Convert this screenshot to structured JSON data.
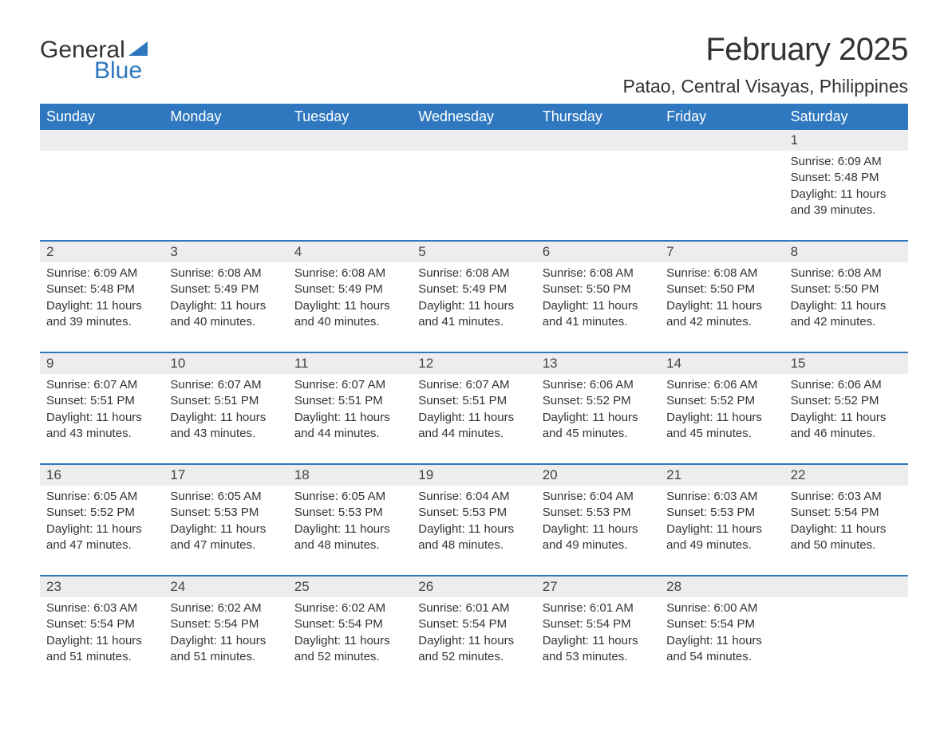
{
  "brand": {
    "word1": "General",
    "word2": "Blue",
    "sail_color": "#2f78bf",
    "text_color": "#333333"
  },
  "title": "February 2025",
  "location": "Patao, Central Visayas, Philippines",
  "colors": {
    "header_bg": "#2f78bf",
    "header_text": "#ffffff",
    "daynum_bg": "#ededed",
    "week_divider": "#2f78bf",
    "body_text": "#333333",
    "page_bg": "#ffffff"
  },
  "day_names": [
    "Sunday",
    "Monday",
    "Tuesday",
    "Wednesday",
    "Thursday",
    "Friday",
    "Saturday"
  ],
  "weeks": [
    [
      {
        "day": "",
        "sunrise": "",
        "sunset": "",
        "daylight": ""
      },
      {
        "day": "",
        "sunrise": "",
        "sunset": "",
        "daylight": ""
      },
      {
        "day": "",
        "sunrise": "",
        "sunset": "",
        "daylight": ""
      },
      {
        "day": "",
        "sunrise": "",
        "sunset": "",
        "daylight": ""
      },
      {
        "day": "",
        "sunrise": "",
        "sunset": "",
        "daylight": ""
      },
      {
        "day": "",
        "sunrise": "",
        "sunset": "",
        "daylight": ""
      },
      {
        "day": "1",
        "sunrise": "Sunrise: 6:09 AM",
        "sunset": "Sunset: 5:48 PM",
        "daylight": "Daylight: 11 hours and 39 minutes."
      }
    ],
    [
      {
        "day": "2",
        "sunrise": "Sunrise: 6:09 AM",
        "sunset": "Sunset: 5:48 PM",
        "daylight": "Daylight: 11 hours and 39 minutes."
      },
      {
        "day": "3",
        "sunrise": "Sunrise: 6:08 AM",
        "sunset": "Sunset: 5:49 PM",
        "daylight": "Daylight: 11 hours and 40 minutes."
      },
      {
        "day": "4",
        "sunrise": "Sunrise: 6:08 AM",
        "sunset": "Sunset: 5:49 PM",
        "daylight": "Daylight: 11 hours and 40 minutes."
      },
      {
        "day": "5",
        "sunrise": "Sunrise: 6:08 AM",
        "sunset": "Sunset: 5:49 PM",
        "daylight": "Daylight: 11 hours and 41 minutes."
      },
      {
        "day": "6",
        "sunrise": "Sunrise: 6:08 AM",
        "sunset": "Sunset: 5:50 PM",
        "daylight": "Daylight: 11 hours and 41 minutes."
      },
      {
        "day": "7",
        "sunrise": "Sunrise: 6:08 AM",
        "sunset": "Sunset: 5:50 PM",
        "daylight": "Daylight: 11 hours and 42 minutes."
      },
      {
        "day": "8",
        "sunrise": "Sunrise: 6:08 AM",
        "sunset": "Sunset: 5:50 PM",
        "daylight": "Daylight: 11 hours and 42 minutes."
      }
    ],
    [
      {
        "day": "9",
        "sunrise": "Sunrise: 6:07 AM",
        "sunset": "Sunset: 5:51 PM",
        "daylight": "Daylight: 11 hours and 43 minutes."
      },
      {
        "day": "10",
        "sunrise": "Sunrise: 6:07 AM",
        "sunset": "Sunset: 5:51 PM",
        "daylight": "Daylight: 11 hours and 43 minutes."
      },
      {
        "day": "11",
        "sunrise": "Sunrise: 6:07 AM",
        "sunset": "Sunset: 5:51 PM",
        "daylight": "Daylight: 11 hours and 44 minutes."
      },
      {
        "day": "12",
        "sunrise": "Sunrise: 6:07 AM",
        "sunset": "Sunset: 5:51 PM",
        "daylight": "Daylight: 11 hours and 44 minutes."
      },
      {
        "day": "13",
        "sunrise": "Sunrise: 6:06 AM",
        "sunset": "Sunset: 5:52 PM",
        "daylight": "Daylight: 11 hours and 45 minutes."
      },
      {
        "day": "14",
        "sunrise": "Sunrise: 6:06 AM",
        "sunset": "Sunset: 5:52 PM",
        "daylight": "Daylight: 11 hours and 45 minutes."
      },
      {
        "day": "15",
        "sunrise": "Sunrise: 6:06 AM",
        "sunset": "Sunset: 5:52 PM",
        "daylight": "Daylight: 11 hours and 46 minutes."
      }
    ],
    [
      {
        "day": "16",
        "sunrise": "Sunrise: 6:05 AM",
        "sunset": "Sunset: 5:52 PM",
        "daylight": "Daylight: 11 hours and 47 minutes."
      },
      {
        "day": "17",
        "sunrise": "Sunrise: 6:05 AM",
        "sunset": "Sunset: 5:53 PM",
        "daylight": "Daylight: 11 hours and 47 minutes."
      },
      {
        "day": "18",
        "sunrise": "Sunrise: 6:05 AM",
        "sunset": "Sunset: 5:53 PM",
        "daylight": "Daylight: 11 hours and 48 minutes."
      },
      {
        "day": "19",
        "sunrise": "Sunrise: 6:04 AM",
        "sunset": "Sunset: 5:53 PM",
        "daylight": "Daylight: 11 hours and 48 minutes."
      },
      {
        "day": "20",
        "sunrise": "Sunrise: 6:04 AM",
        "sunset": "Sunset: 5:53 PM",
        "daylight": "Daylight: 11 hours and 49 minutes."
      },
      {
        "day": "21",
        "sunrise": "Sunrise: 6:03 AM",
        "sunset": "Sunset: 5:53 PM",
        "daylight": "Daylight: 11 hours and 49 minutes."
      },
      {
        "day": "22",
        "sunrise": "Sunrise: 6:03 AM",
        "sunset": "Sunset: 5:54 PM",
        "daylight": "Daylight: 11 hours and 50 minutes."
      }
    ],
    [
      {
        "day": "23",
        "sunrise": "Sunrise: 6:03 AM",
        "sunset": "Sunset: 5:54 PM",
        "daylight": "Daylight: 11 hours and 51 minutes."
      },
      {
        "day": "24",
        "sunrise": "Sunrise: 6:02 AM",
        "sunset": "Sunset: 5:54 PM",
        "daylight": "Daylight: 11 hours and 51 minutes."
      },
      {
        "day": "25",
        "sunrise": "Sunrise: 6:02 AM",
        "sunset": "Sunset: 5:54 PM",
        "daylight": "Daylight: 11 hours and 52 minutes."
      },
      {
        "day": "26",
        "sunrise": "Sunrise: 6:01 AM",
        "sunset": "Sunset: 5:54 PM",
        "daylight": "Daylight: 11 hours and 52 minutes."
      },
      {
        "day": "27",
        "sunrise": "Sunrise: 6:01 AM",
        "sunset": "Sunset: 5:54 PM",
        "daylight": "Daylight: 11 hours and 53 minutes."
      },
      {
        "day": "28",
        "sunrise": "Sunrise: 6:00 AM",
        "sunset": "Sunset: 5:54 PM",
        "daylight": "Daylight: 11 hours and 54 minutes."
      },
      {
        "day": "",
        "sunrise": "",
        "sunset": "",
        "daylight": ""
      }
    ]
  ]
}
